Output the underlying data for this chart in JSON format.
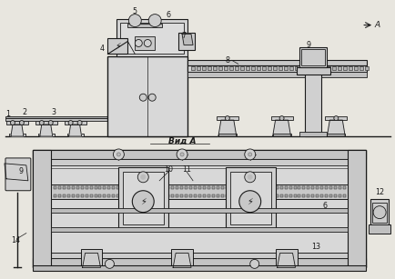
{
  "bg_color": "#e8e6df",
  "line_color": "#1a1a1a",
  "fig_w": 4.34,
  "fig_h": 3.07,
  "dpi": 100,
  "vid_a_label": "Вид A"
}
